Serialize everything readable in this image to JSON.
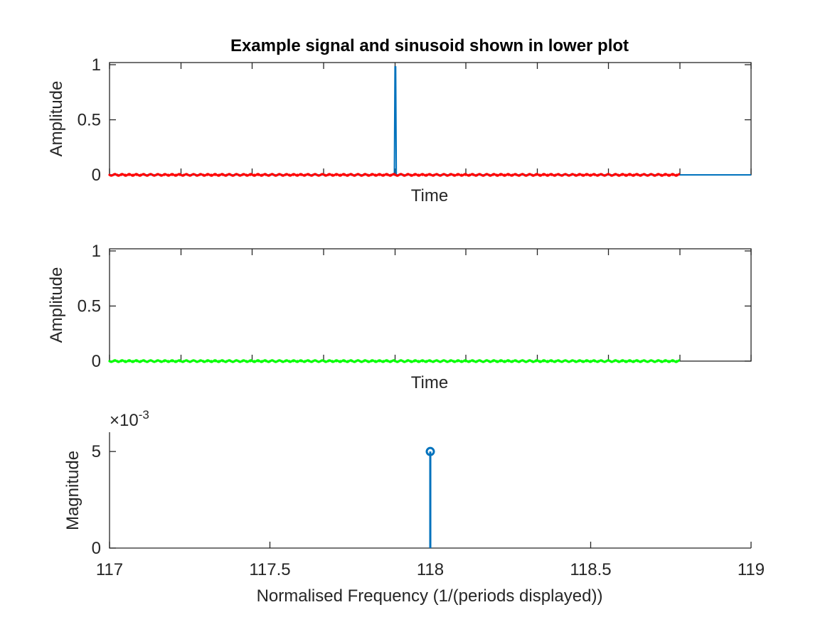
{
  "figure": {
    "colors": {
      "axis": "#262626",
      "signal": "#0072BD",
      "red_sinusoid": "#FF0000",
      "green_product": "#00FF00",
      "stem": "#0072BD"
    }
  },
  "chart_data": [
    {
      "type": "line",
      "title": "Example signal and sinusoid shown in lower plot",
      "xlabel": "Time",
      "ylabel": "Amplitude",
      "ylim": [
        0,
        1
      ],
      "yticks": [
        "0",
        "0.5",
        "1"
      ],
      "xticks_labeled": false,
      "grid": false,
      "series": [
        {
          "color": "#0072BD",
          "x": [
            0,
            0.444,
            0.445,
            0.446,
            0.447,
            0.448,
            1
          ],
          "y": [
            0,
            0,
            0.98,
            0.98,
            0,
            0,
            0
          ]
        },
        {
          "color": "#FF0000",
          "x": [
            0,
            0.89
          ],
          "y": [
            0,
            0
          ],
          "note_style": "dense dotted sinusoid with near-zero amplitude"
        }
      ]
    },
    {
      "type": "line",
      "xlabel": "Time",
      "ylabel": "Amplitude",
      "ylim": [
        0,
        1
      ],
      "yticks": [
        "0",
        "0.5",
        "1"
      ],
      "xticks_labeled": false,
      "grid": false,
      "series": [
        {
          "color": "#00FF00",
          "x": [
            0,
            0.89
          ],
          "y": [
            0,
            0
          ]
        }
      ]
    },
    {
      "type": "stem",
      "xlabel": "Normalised Frequency (1/(periods displayed))",
      "ylabel": "Magnitude",
      "exponent_label": "×10",
      "exponent_power": "-3",
      "xlim": [
        117,
        119
      ],
      "ylim": [
        0,
        6
      ],
      "xticks": [
        "117",
        "117.5",
        "118",
        "118.5",
        "119"
      ],
      "yticks": [
        "0",
        "5"
      ],
      "grid": false,
      "points": [
        {
          "x": 118,
          "y": 5
        }
      ]
    }
  ]
}
